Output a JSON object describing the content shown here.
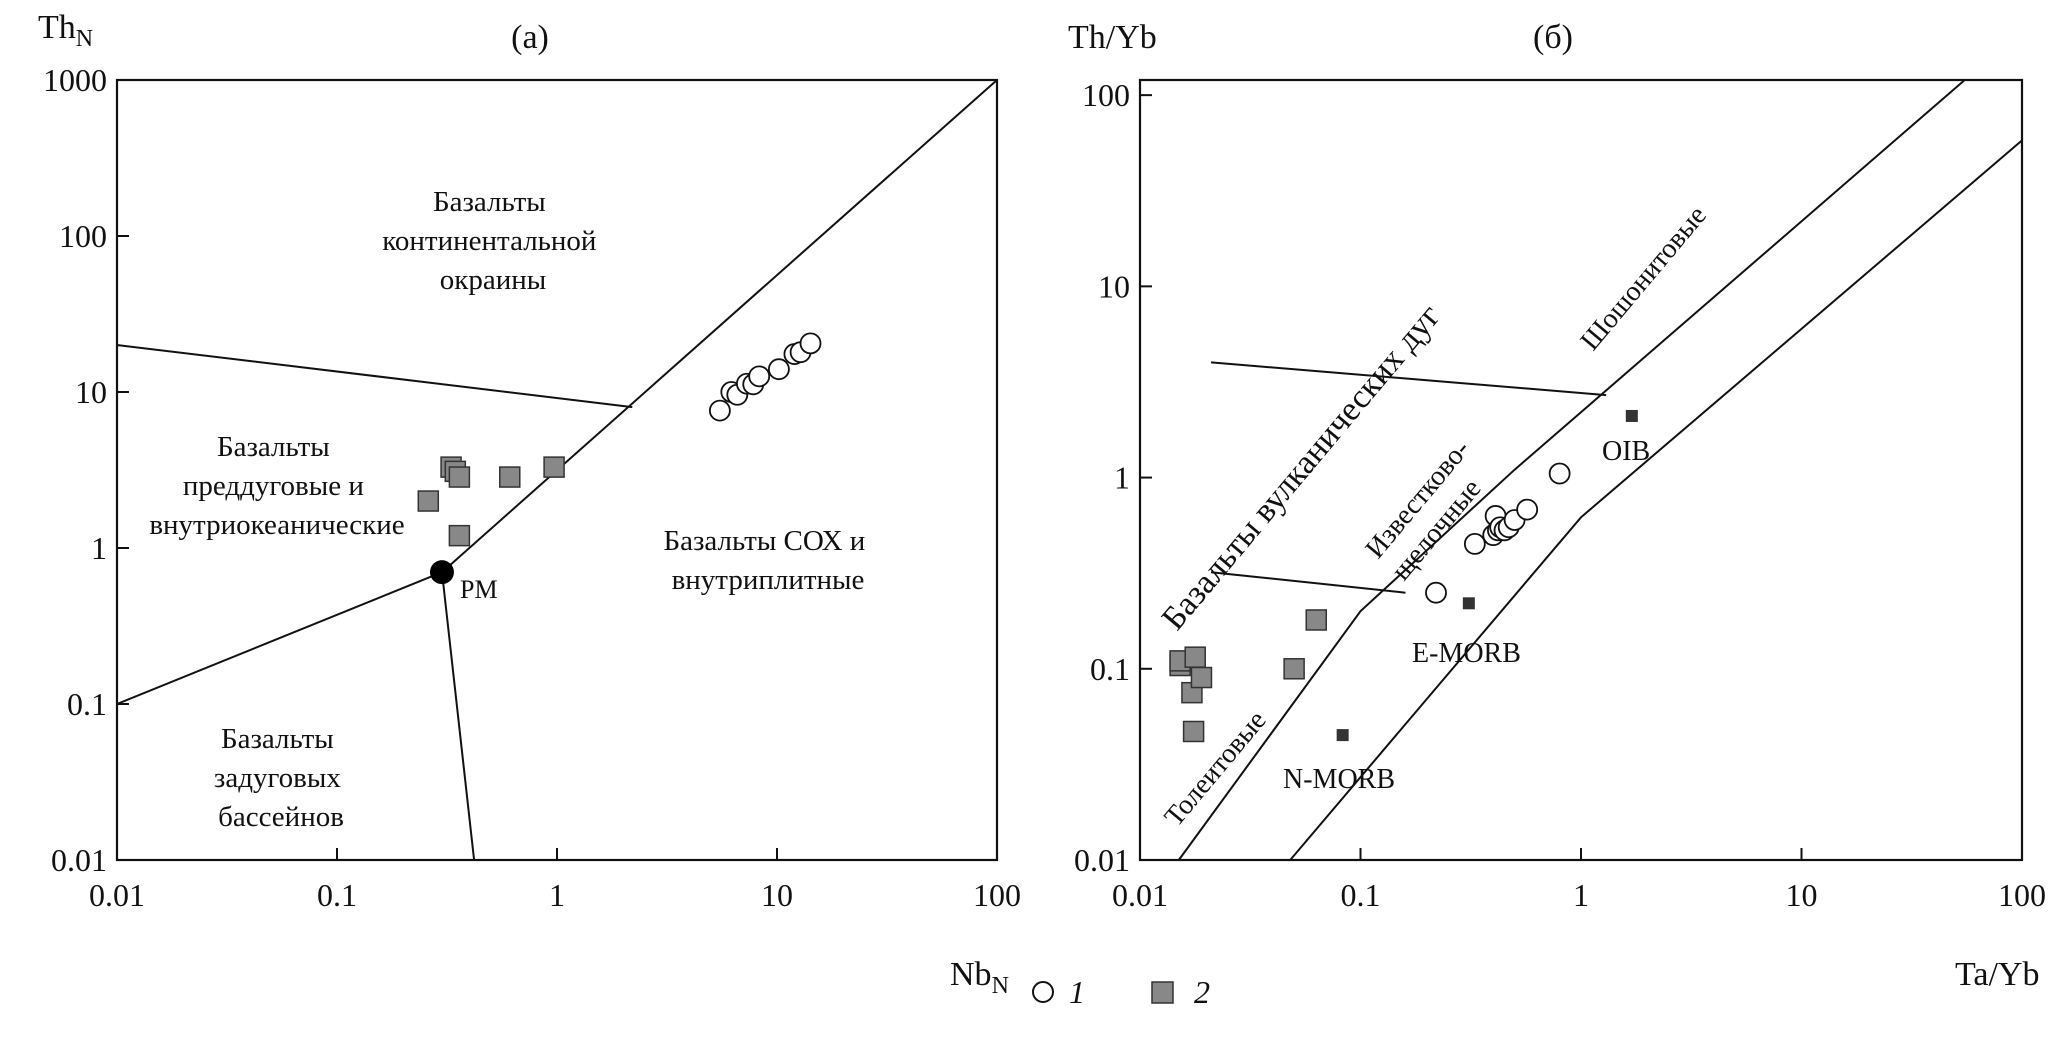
{
  "chart_data": [
    {
      "panel_label": "(a)",
      "type": "scatter",
      "xscale": "log",
      "yscale": "log",
      "xlabel": "Nb",
      "xlabel_sub": "N",
      "ylabel": "Th",
      "ylabel_sub": "N",
      "xlim": [
        0.01,
        100
      ],
      "ylim": [
        0.01,
        1000
      ],
      "x_ticks": [
        "0.01",
        "0.1",
        "1",
        "10",
        "100"
      ],
      "y_ticks": [
        "0.01",
        "0.1",
        "1",
        "10",
        "100",
        "1000"
      ],
      "regions": [
        [
          "Базальты",
          "континентальной",
          "окраины"
        ],
        [
          "Базальты",
          "преддуговые и",
          "внутриокеанические"
        ],
        [
          "Базальты СОХ и",
          "внутриплитные"
        ],
        [
          "Базальты",
          "задуговых",
          "бассейнов"
        ]
      ],
      "point_labels": [
        "PM"
      ],
      "boundaries": [
        [
          [
            0.3,
            0.7
          ],
          [
            100,
            1000
          ]
        ],
        [
          [
            0.01,
            20
          ],
          [
            2.2,
            8
          ]
        ],
        [
          [
            0.01,
            0.1
          ],
          [
            0.3,
            0.7
          ]
        ],
        [
          [
            0.3,
            0.7
          ],
          [
            0.42,
            0.01
          ]
        ]
      ],
      "pm": [
        0.3,
        0.7
      ],
      "series": [
        {
          "name": "1",
          "marker": "open-circle",
          "points": [
            [
              5.5,
              7.6
            ],
            [
              6.2,
              10.0
            ],
            [
              6.6,
              9.6
            ],
            [
              7.3,
              11.3
            ],
            [
              7.8,
              11.2
            ],
            [
              8.3,
              12.6
            ],
            [
              10.2,
              14.0
            ],
            [
              12.0,
              17.5
            ],
            [
              12.8,
              18.0
            ],
            [
              14.2,
              20.5
            ]
          ]
        },
        {
          "name": "2",
          "marker": "filled-square",
          "points": [
            [
              0.26,
              2.0
            ],
            [
              0.33,
              3.3
            ],
            [
              0.345,
              3.1
            ],
            [
              0.36,
              2.85
            ],
            [
              0.36,
              1.2
            ],
            [
              0.61,
              2.85
            ],
            [
              0.97,
              3.3
            ]
          ]
        }
      ]
    },
    {
      "panel_label": "(б)",
      "type": "scatter",
      "xscale": "log",
      "yscale": "log",
      "xlabel": "Ta/Yb",
      "ylabel": "Th/Yb",
      "xlim": [
        0.01,
        100
      ],
      "ylim": [
        0.01,
        120
      ],
      "x_ticks": [
        "0.01",
        "0.1",
        "1",
        "10",
        "100"
      ],
      "y_ticks": [
        "0.01",
        "0.1",
        "1",
        "10",
        "100"
      ],
      "regions": [
        [
          "Базальты вулканических дуг"
        ],
        [
          "Шошонитовые"
        ],
        [
          "Известково-",
          "щелочные"
        ],
        [
          "Толеитовые"
        ]
      ],
      "reference_labels": [
        "OIB",
        "E-MORB",
        "N-MORB"
      ],
      "boundaries": [
        [
          [
            0.015,
            0.01
          ],
          [
            0.1,
            0.2
          ],
          [
            0.5,
            1.1
          ],
          [
            55,
            120
          ]
        ],
        [
          [
            0.048,
            0.01
          ],
          [
            1.0,
            0.62
          ],
          [
            100,
            58
          ]
        ],
        [
          [
            0.021,
            4.0
          ],
          [
            1.3,
            2.7
          ]
        ],
        [
          [
            0.021,
            0.32
          ],
          [
            0.16,
            0.25
          ]
        ]
      ],
      "reference_points": [
        {
          "name": "OIB",
          "x": 1.7,
          "y": 2.1
        },
        {
          "name": "E-MORB",
          "x": 0.31,
          "y": 0.22
        },
        {
          "name": "N-MORB",
          "x": 0.083,
          "y": 0.045
        }
      ],
      "series": [
        {
          "name": "1",
          "marker": "open-circle",
          "points": [
            [
              0.22,
              0.25
            ],
            [
              0.33,
              0.45
            ],
            [
              0.4,
              0.5
            ],
            [
              0.41,
              0.63
            ],
            [
              0.42,
              0.53
            ],
            [
              0.43,
              0.55
            ],
            [
              0.45,
              0.53
            ],
            [
              0.47,
              0.55
            ],
            [
              0.5,
              0.6
            ],
            [
              0.57,
              0.68
            ],
            [
              0.8,
              1.05
            ]
          ]
        },
        {
          "name": "2",
          "marker": "filled-square",
          "points": [
            [
              0.0152,
              0.104
            ],
            [
              0.0152,
              0.11
            ],
            [
              0.0172,
              0.075
            ],
            [
              0.0175,
              0.047
            ],
            [
              0.0178,
              0.115
            ],
            [
              0.019,
              0.09
            ],
            [
              0.05,
              0.1
            ],
            [
              0.063,
              0.18
            ]
          ]
        }
      ]
    }
  ],
  "legend": {
    "items": [
      {
        "label": "1",
        "marker": "open-circle"
      },
      {
        "label": "2",
        "marker": "filled-square"
      }
    ]
  },
  "colors": {
    "ink": "#111111",
    "square_fill": "#888888",
    "square_stroke": "#333333",
    "ref_fill": "#333333"
  }
}
